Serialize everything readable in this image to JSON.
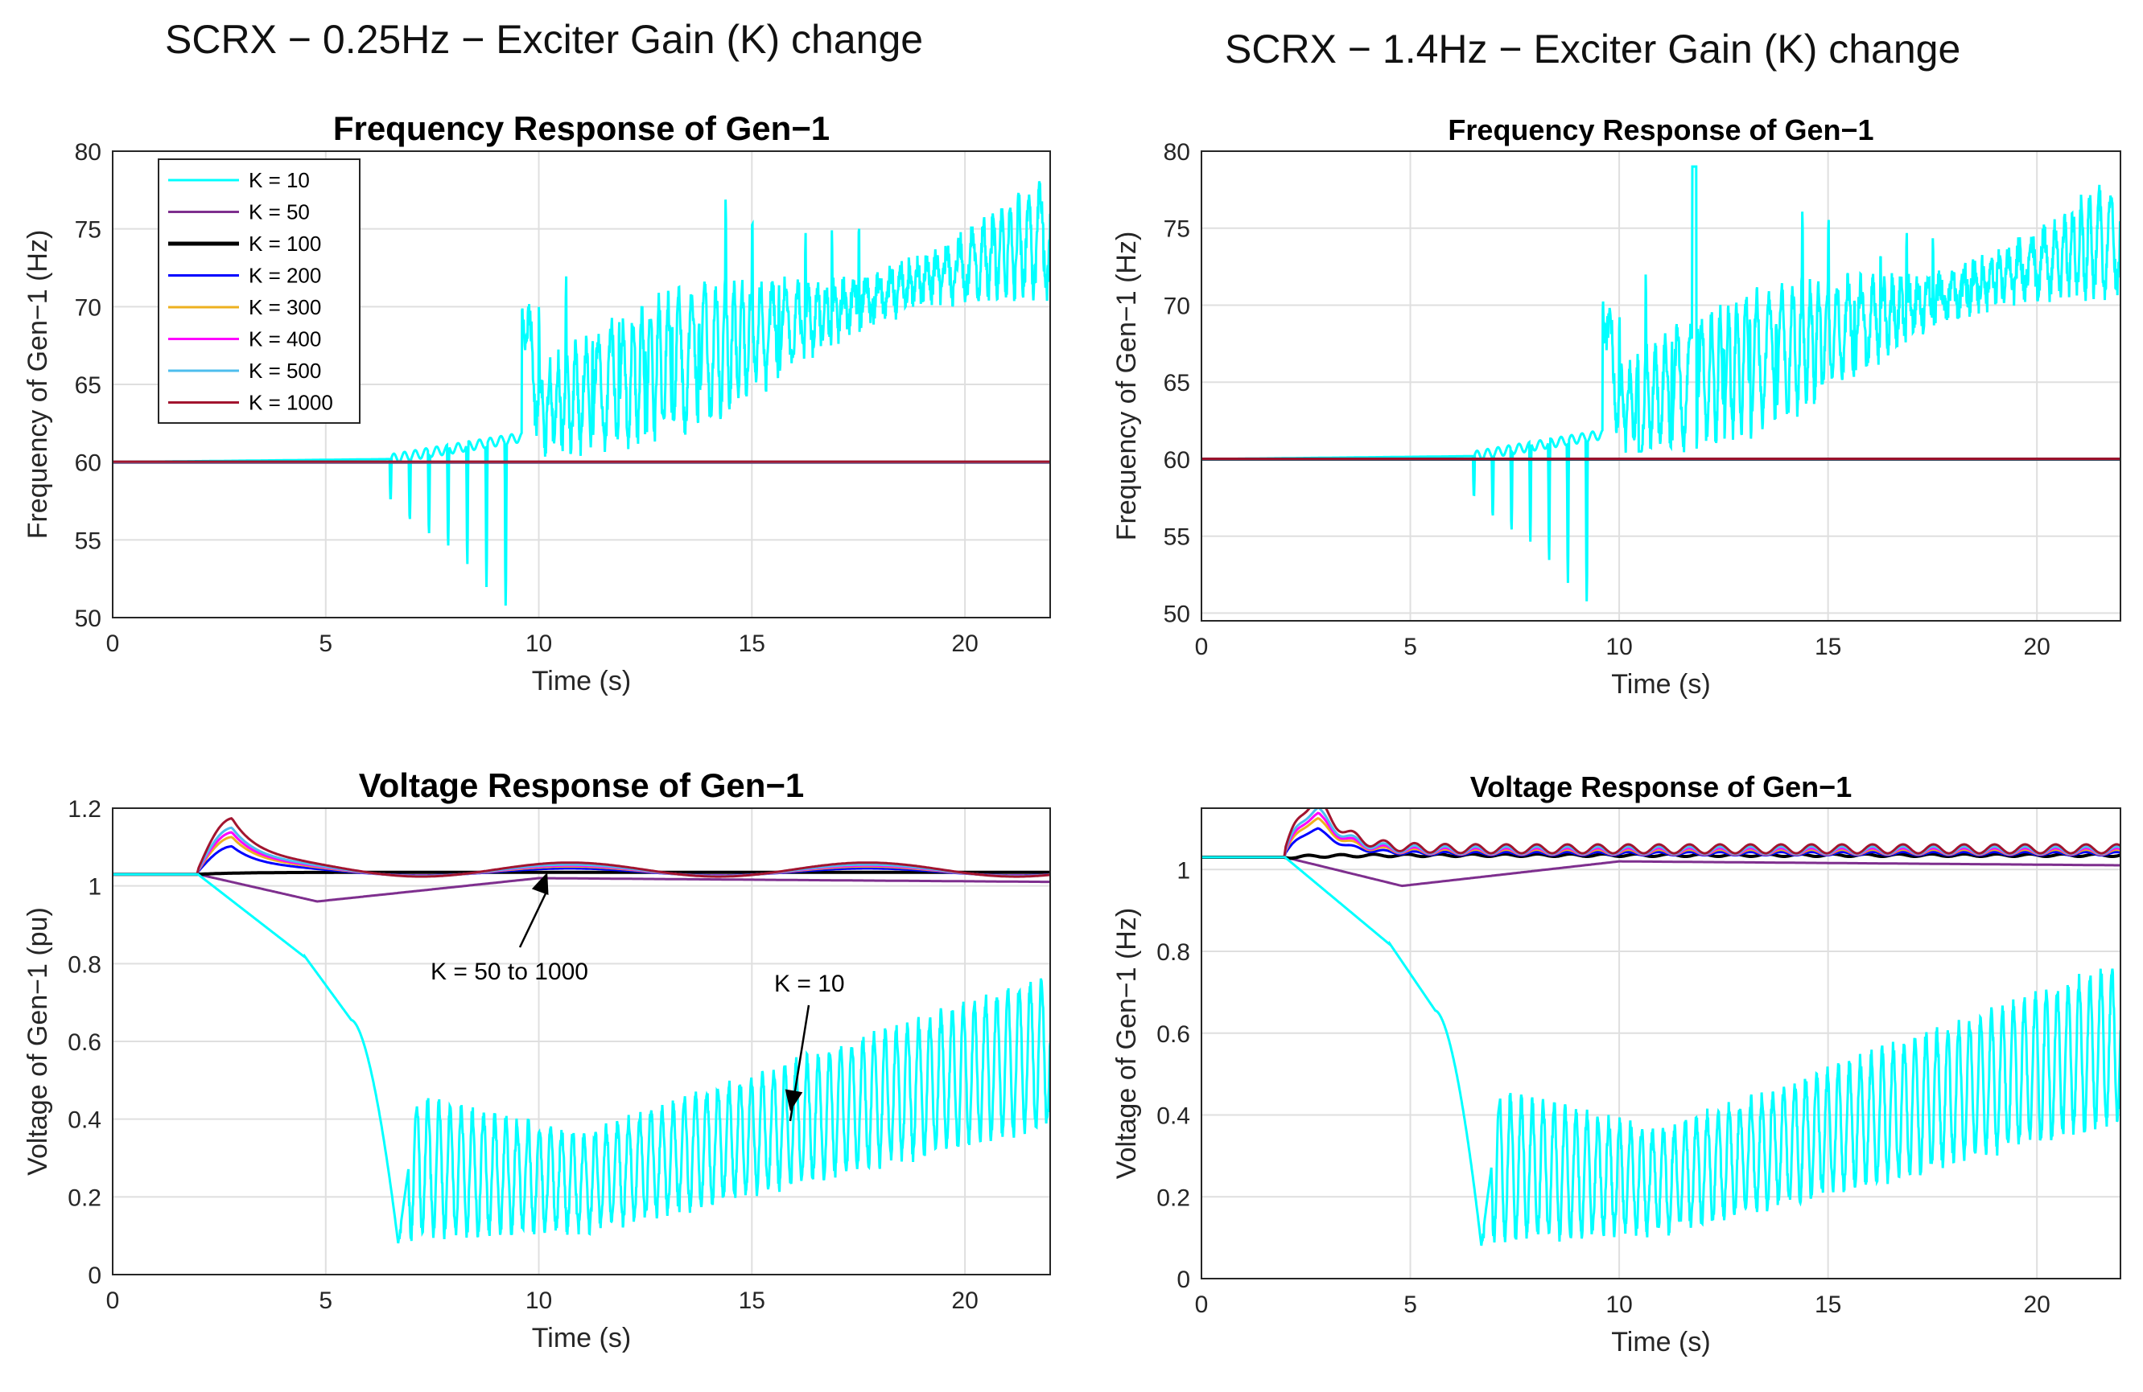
{
  "columns": [
    {
      "title": "SCRX − 0.25Hz − Exciter Gain (K) change"
    },
    {
      "title": "SCRX − 1.4Hz − Exciter Gain (K) change"
    }
  ],
  "series_colors": {
    "K = 10": "#00ffff",
    "K = 50": "#7e2f8e",
    "K = 100": "#000000",
    "K = 200": "#0000ff",
    "K = 300": "#edb120",
    "K = 400": "#ff00ff",
    "K = 500": "#4dbeee",
    "K = 1000": "#a2142f"
  },
  "chart_data": [
    {
      "id": "freq-left",
      "type": "line",
      "title": "Frequency Response of Gen−1",
      "xlabel": "Time (s)",
      "ylabel": "Frequency of Gen−1 (Hz)",
      "xlim": [
        0,
        22
      ],
      "ylim": [
        50,
        80
      ],
      "xticks": [
        "0",
        "5",
        "10",
        "15",
        "20"
      ],
      "yticks": [
        "50",
        "55",
        "60",
        "65",
        "70",
        "75",
        "80"
      ],
      "grid": true,
      "legend": {
        "placement": "top-left",
        "entries": [
          "K = 10",
          "K = 50",
          "K = 100",
          "K = 200",
          "K = 300",
          "K = 400",
          "K = 500",
          "K = 1000"
        ]
      },
      "series": [
        {
          "name": "K = 10",
          "behavior": "steady 60 Hz until ~6.5 s, downward spikes to ~51 Hz by 9.5 s, jump to ~62-74 Hz, rising oscillation to ~74-77 Hz at 22 s",
          "points": [
            [
              0,
              60
            ],
            [
              6.5,
              60.2
            ],
            [
              9.6,
              61.5
            ],
            [
              9.7,
              62
            ],
            [
              12,
              65
            ],
            [
              15,
              68
            ],
            [
              18,
              72
            ],
            [
              20,
              74
            ],
            [
              22,
              74.5
            ]
          ]
        },
        {
          "name": "K = 50",
          "values_constant": 60
        },
        {
          "name": "K = 100",
          "values_constant": 60
        },
        {
          "name": "K = 200",
          "values_constant": 60
        },
        {
          "name": "K = 300",
          "values_constant": 60
        },
        {
          "name": "K = 400",
          "values_constant": 60
        },
        {
          "name": "K = 500",
          "values_constant": 60
        },
        {
          "name": "K = 1000",
          "values_constant": 60
        }
      ]
    },
    {
      "id": "volt-left",
      "type": "line",
      "title": "Voltage Response of Gen−1",
      "xlabel": "Time (s)",
      "ylabel": "Voltage of Gen−1 (pu)",
      "xlim": [
        0,
        22
      ],
      "ylim": [
        0,
        1.2
      ],
      "xticks": [
        "0",
        "5",
        "10",
        "15",
        "20"
      ],
      "yticks": [
        "0",
        "0.2",
        "0.4",
        "0.6",
        "0.8",
        "1",
        "1.2"
      ],
      "grid": true,
      "annotations": [
        {
          "text": "K = 50 to 1000",
          "points_to": [
            10.2,
            1.035
          ]
        },
        {
          "text": "K = 10",
          "points_to": [
            15.9,
            0.42
          ]
        }
      ],
      "series": [
        {
          "name": "K = 10",
          "points": [
            [
              0,
              1.03
            ],
            [
              2,
              1.03
            ],
            [
              3,
              0.9
            ],
            [
              4.5,
              0.82
            ],
            [
              5.6,
              0.65
            ],
            [
              6.7,
              0.08
            ],
            [
              8,
              0.35
            ],
            [
              10,
              0.25
            ],
            [
              12,
              0.22
            ],
            [
              15,
              0.32
            ],
            [
              18,
              0.42
            ],
            [
              22,
              0.58
            ]
          ]
        },
        {
          "name": "K = 50",
          "points": [
            [
              0,
              1.03
            ],
            [
              2,
              1.03
            ],
            [
              4.8,
              0.96
            ],
            [
              10,
              1.02
            ],
            [
              22,
              1.01
            ]
          ]
        },
        {
          "name": "K = 100",
          "points": [
            [
              0,
              1.03
            ],
            [
              2,
              1.03
            ],
            [
              5,
              1.035
            ],
            [
              22,
              1.035
            ]
          ]
        },
        {
          "name": "K = 200",
          "peak": 1.09
        },
        {
          "name": "K = 300",
          "peak": 1.11
        },
        {
          "name": "K = 400",
          "peak": 1.12
        },
        {
          "name": "K = 500",
          "peak": 1.13
        },
        {
          "name": "K = 1000",
          "peak": 1.15
        }
      ]
    },
    {
      "id": "freq-right",
      "type": "line",
      "title": "Frequency Response of Gen−1",
      "xlabel": "Time (s)",
      "ylabel": "Frequency of Gen−1 (Hz)",
      "xlim": [
        0,
        22
      ],
      "ylim": [
        49.5,
        80
      ],
      "xticks": [
        "0",
        "5",
        "10",
        "15",
        "20"
      ],
      "yticks": [
        "50",
        "55",
        "60",
        "65",
        "70",
        "75",
        "80"
      ],
      "grid": true,
      "series": [
        {
          "name": "K = 10",
          "behavior": "steady 60 Hz until ~6.5 s, spikes down to ~49.5 Hz at 9.4 s, jump to ~62-76 Hz, rising oscillation to ~75 Hz at 22 s; spike to ~79 Hz at 11.8 s",
          "points": [
            [
              0,
              60
            ],
            [
              6.5,
              60.2
            ],
            [
              9.6,
              61.5
            ],
            [
              12,
              65
            ],
            [
              15,
              68
            ],
            [
              18,
              72
            ],
            [
              20,
              74
            ],
            [
              22,
              74.5
            ]
          ]
        },
        {
          "name": "K = 50",
          "values_constant": 60
        },
        {
          "name": "K = 100",
          "values_constant": 60
        },
        {
          "name": "K = 200",
          "values_constant": 60
        },
        {
          "name": "K = 300",
          "values_constant": 60
        },
        {
          "name": "K = 400",
          "values_constant": 60
        },
        {
          "name": "K = 500",
          "values_constant": 60
        },
        {
          "name": "K = 1000",
          "values_constant": 60
        }
      ]
    },
    {
      "id": "volt-right",
      "type": "line",
      "title": "Voltage Response of Gen−1",
      "xlabel": "Time (s)",
      "ylabel": "Voltage of Gen−1 (Hz)",
      "xlim": [
        0,
        22
      ],
      "ylim": [
        0,
        1.15
      ],
      "xticks": [
        "0",
        "5",
        "10",
        "15",
        "20"
      ],
      "yticks": [
        "0",
        "0.2",
        "0.4",
        "0.6",
        "0.8",
        "1"
      ],
      "grid": true,
      "series": [
        {
          "name": "K = 10",
          "points": [
            [
              0,
              1.03
            ],
            [
              2,
              1.03
            ],
            [
              3,
              0.9
            ],
            [
              4.5,
              0.82
            ],
            [
              5.6,
              0.65
            ],
            [
              6.7,
              0.08
            ],
            [
              8,
              0.35
            ],
            [
              10,
              0.25
            ],
            [
              12,
              0.22
            ],
            [
              15,
              0.32
            ],
            [
              18,
              0.42
            ],
            [
              22,
              0.58
            ]
          ]
        },
        {
          "name": "K = 50",
          "points": [
            [
              0,
              1.03
            ],
            [
              2,
              1.03
            ],
            [
              4.8,
              0.96
            ],
            [
              10,
              1.02
            ],
            [
              22,
              1.01
            ]
          ]
        },
        {
          "name": "K = 100",
          "points": [
            [
              0,
              1.03
            ],
            [
              2,
              1.03
            ],
            [
              5,
              1.03
            ],
            [
              22,
              1.03
            ]
          ]
        },
        {
          "name": "K = 200",
          "peak": 1.09,
          "osc_amp": 0.008
        },
        {
          "name": "K = 300",
          "peak": 1.11,
          "osc_amp": 0.012
        },
        {
          "name": "K = 400",
          "peak": 1.12,
          "osc_amp": 0.015
        },
        {
          "name": "K = 500",
          "peak": 1.13,
          "osc_amp": 0.018
        },
        {
          "name": "K = 1000",
          "peak": 1.15,
          "osc_amp": 0.022
        }
      ]
    }
  ]
}
